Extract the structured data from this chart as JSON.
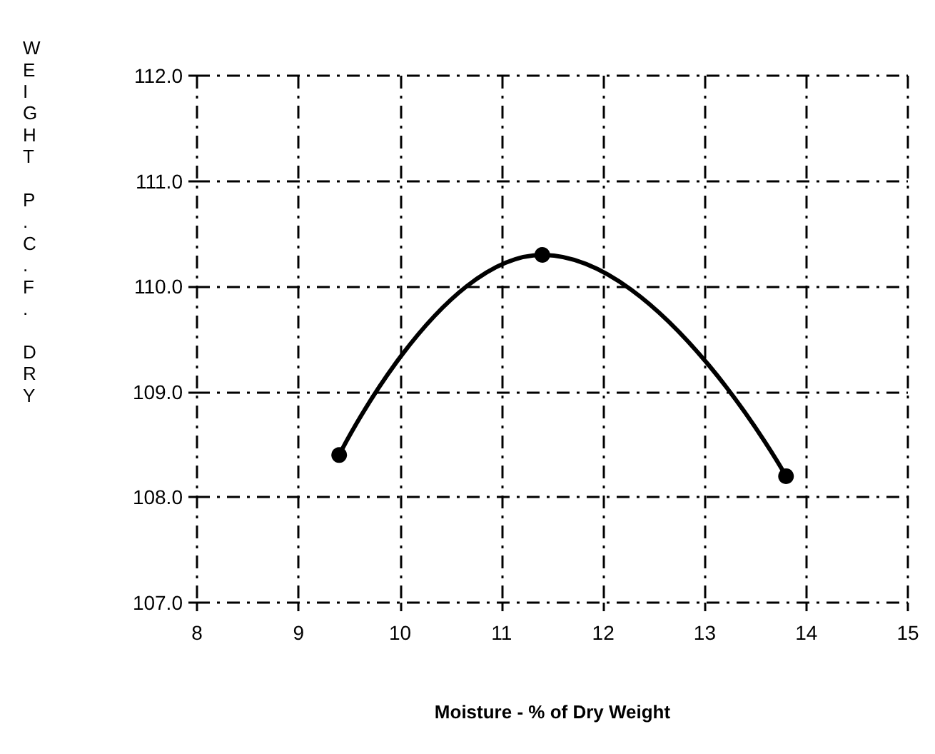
{
  "chart_data": {
    "type": "line",
    "xlabel": "Moisture - % of Dry Weight",
    "ylabel": "WEIGHT P.C.F. DRY",
    "x": [
      9.4,
      11.4,
      13.8
    ],
    "series": [
      {
        "color": "#000000",
        "values": [
          108.4,
          110.3,
          108.2
        ]
      }
    ],
    "xlim": [
      8,
      15
    ],
    "xticks": [
      8,
      9,
      10,
      11,
      12,
      13,
      14,
      15
    ],
    "ylim": [
      107,
      112
    ],
    "yticks": [
      {
        "value": 107,
        "label": "107.0"
      },
      {
        "value": 108,
        "label": "108.0"
      },
      {
        "value": 109,
        "label": "109.0"
      },
      {
        "value": 110,
        "label": "110.0"
      },
      {
        "value": 111,
        "label": "111.0"
      },
      {
        "value": 112,
        "label": "112.0"
      }
    ],
    "grid": true,
    "marker": "circle",
    "line_style": "solid"
  }
}
